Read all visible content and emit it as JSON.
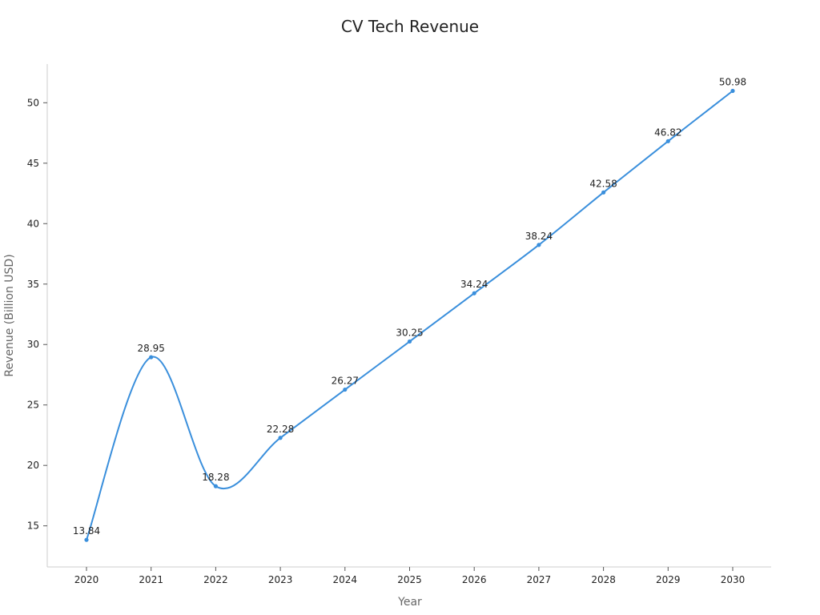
{
  "chart_data": {
    "type": "line",
    "title": "CV Tech Revenue",
    "xlabel": "Year",
    "ylabel": "Revenue (Billion USD)",
    "categories": [
      "2020",
      "2021",
      "2022",
      "2023",
      "2024",
      "2025",
      "2026",
      "2027",
      "2028",
      "2029",
      "2030"
    ],
    "series": [
      {
        "values": [
          13.84,
          28.95,
          18.28,
          22.28,
          26.27,
          30.25,
          34.24,
          38.24,
          42.58,
          46.82,
          50.98
        ],
        "data_labels": [
          "13.84",
          "28.95",
          "18.28",
          "22.28",
          "26.27",
          "30.25",
          "34.24",
          "38.24",
          "42.58",
          "46.82",
          "50.98"
        ]
      }
    ],
    "y_ticks": [
      15,
      20,
      25,
      30,
      35,
      40,
      45,
      50
    ],
    "y_tick_labels": [
      "15",
      "20",
      "25",
      "30",
      "35",
      "40",
      "45",
      "50"
    ],
    "ylim": [
      11.6,
      53.2
    ],
    "grid": false,
    "smooth": true,
    "legend": "none",
    "colors": {
      "series_line": "#3a8fdc",
      "title": "#222222",
      "axis_title": "#666666",
      "axis_line": "#cccccc"
    }
  }
}
